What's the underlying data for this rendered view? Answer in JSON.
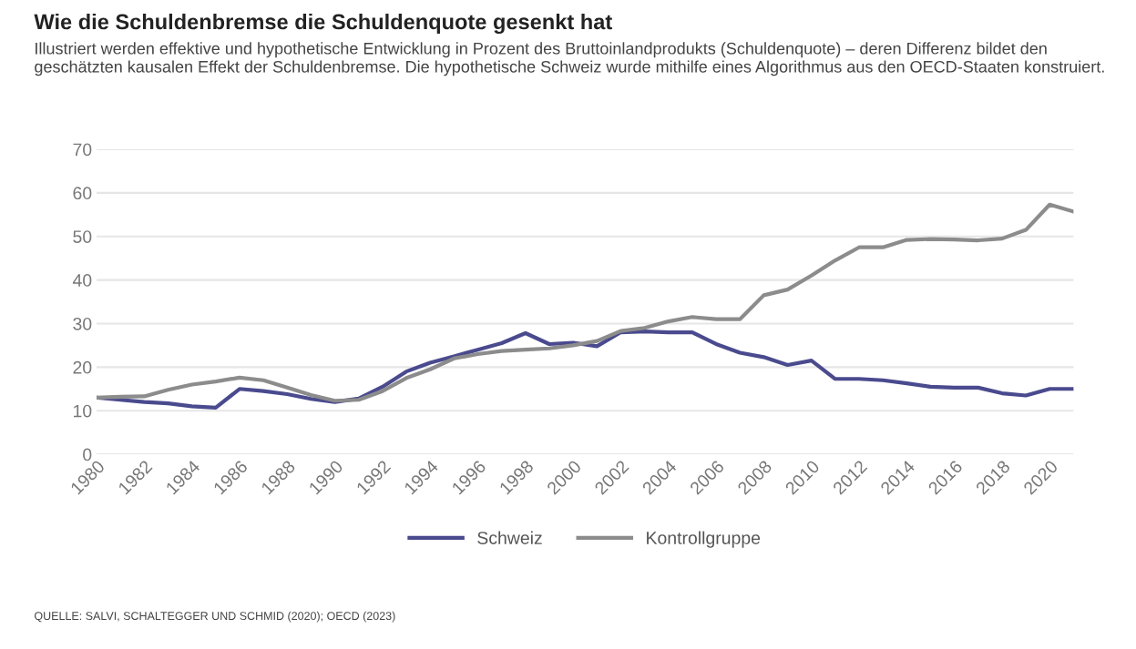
{
  "chart_data": {
    "type": "line",
    "title": "Wie die Schuldenbremse die Schuldenquote gesenkt hat",
    "subtitle": "Illustriert werden effektive und hypothetische Entwicklung in Prozent des Bruttoinlandprodukts (Schuldenquote) – deren Differenz bildet den geschätzten kausalen Effekt der Schuldenbremse. Die hypothetische Schweiz wurde mithilfe eines Algorithmus aus den OECD-Staaten konstruiert.",
    "annotations": [
      "QUELLE: SALVI, SCHALTEGGER UND SCHMID (2020); OECD (2023)"
    ],
    "x": [
      1980,
      1981,
      1982,
      1983,
      1984,
      1985,
      1986,
      1987,
      1988,
      1989,
      1990,
      1991,
      1992,
      1993,
      1994,
      1995,
      1996,
      1997,
      1998,
      1999,
      2000,
      2001,
      2002,
      2003,
      2004,
      2005,
      2006,
      2007,
      2008,
      2009,
      2010,
      2011,
      2012,
      2013,
      2014,
      2015,
      2016,
      2017,
      2018,
      2019,
      2020,
      2021
    ],
    "series": [
      {
        "name": "Schweiz",
        "color": "#4a4a8e",
        "values": [
          13,
          12.5,
          12,
          11.7,
          11,
          10.7,
          15,
          14.5,
          13.8,
          12.7,
          12,
          12.8,
          15.5,
          19,
          21,
          22.5,
          24,
          25.5,
          27.8,
          25.3,
          25.6,
          24.8,
          28,
          28.2,
          28,
          28,
          25.3,
          23.3,
          22.3,
          20.5,
          21.5,
          17.3,
          17.3,
          17,
          16.3,
          15.5,
          15.3,
          15.3,
          14,
          13.5,
          15,
          15
        ]
      },
      {
        "name": "Kontrollgruppe",
        "color": "#8c8c8c",
        "values": [
          13,
          13.2,
          13.3,
          14.8,
          16,
          16.7,
          17.6,
          17,
          15.3,
          13.6,
          12.3,
          12.5,
          14.5,
          17.5,
          19.5,
          22,
          23,
          23.7,
          24,
          24.3,
          25,
          26,
          28.3,
          29,
          30.5,
          31.5,
          31,
          31,
          36.5,
          37.8,
          41,
          44.5,
          47.5,
          47.5,
          49.2,
          49.4,
          49.3,
          49.1,
          49.5,
          51.5,
          57.3,
          55.7
        ]
      }
    ],
    "xlim": [
      1980,
      2021
    ],
    "xticks": [
      1980,
      1982,
      1984,
      1986,
      1988,
      1990,
      1992,
      1994,
      1996,
      1998,
      2000,
      2002,
      2004,
      2006,
      2008,
      2010,
      2012,
      2014,
      2016,
      2018,
      2020
    ],
    "ylim": [
      0,
      70
    ],
    "yticks": [
      0,
      10,
      20,
      30,
      40,
      50,
      60,
      70
    ],
    "grid": "y",
    "legend": "bottom",
    "line_style": "solid"
  }
}
